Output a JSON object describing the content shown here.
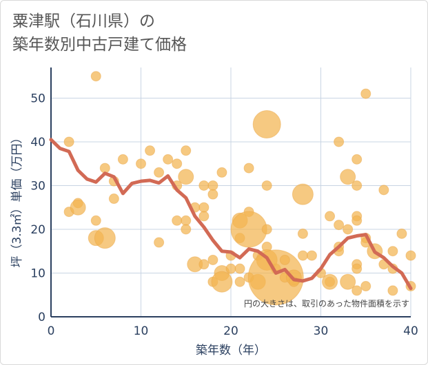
{
  "title_line1": "粟津駅（石川県）の",
  "title_line2": "築年数別中古戸建て価格",
  "colors": {
    "bubble_fill": "#f2b450",
    "bubble_stroke": "#e9a84a",
    "line": "#d26a55",
    "grid": "#c8d4e3",
    "axis": "#2a3f5f"
  },
  "chart_data": {
    "type": "scatter",
    "title": "粟津駅（石川県）の築年数別中古戸建て価格",
    "xlabel": "築年数（年）",
    "ylabel": "坪（3.3㎡）単価（万円）",
    "xlim": [
      0,
      40
    ],
    "ylim": [
      0,
      57
    ],
    "xticks": [
      0,
      10,
      20,
      30,
      40
    ],
    "yticks": [
      0,
      10,
      20,
      30,
      40,
      50
    ],
    "note": "円の大きさは、取引のあった物件面積を示す",
    "points": [
      {
        "x": 2,
        "y": 40,
        "s": 1
      },
      {
        "x": 2,
        "y": 24,
        "s": 1
      },
      {
        "x": 3,
        "y": 26,
        "s": 1
      },
      {
        "x": 3,
        "y": 25,
        "s": 2
      },
      {
        "x": 5,
        "y": 55,
        "s": 1
      },
      {
        "x": 5,
        "y": 22,
        "s": 1
      },
      {
        "x": 5,
        "y": 18,
        "s": 2
      },
      {
        "x": 6,
        "y": 34,
        "s": 1
      },
      {
        "x": 6,
        "y": 18,
        "s": 3
      },
      {
        "x": 7,
        "y": 31,
        "s": 1
      },
      {
        "x": 7,
        "y": 27,
        "s": 1
      },
      {
        "x": 8,
        "y": 36,
        "s": 1
      },
      {
        "x": 10,
        "y": 35,
        "s": 1
      },
      {
        "x": 11,
        "y": 38,
        "s": 1
      },
      {
        "x": 12,
        "y": 33,
        "s": 1
      },
      {
        "x": 12,
        "y": 17,
        "s": 1
      },
      {
        "x": 13,
        "y": 36,
        "s": 1
      },
      {
        "x": 14,
        "y": 35,
        "s": 1
      },
      {
        "x": 14,
        "y": 30,
        "s": 1
      },
      {
        "x": 14,
        "y": 22,
        "s": 1
      },
      {
        "x": 15,
        "y": 38,
        "s": 1
      },
      {
        "x": 15,
        "y": 32,
        "s": 2
      },
      {
        "x": 15,
        "y": 22,
        "s": 1
      },
      {
        "x": 15,
        "y": 20,
        "s": 1
      },
      {
        "x": 16,
        "y": 25,
        "s": 1
      },
      {
        "x": 16,
        "y": 12,
        "s": 2
      },
      {
        "x": 17,
        "y": 30,
        "s": 1
      },
      {
        "x": 17,
        "y": 25,
        "s": 1
      },
      {
        "x": 17,
        "y": 23,
        "s": 1
      },
      {
        "x": 17,
        "y": 12,
        "s": 1
      },
      {
        "x": 18,
        "y": 30,
        "s": 1
      },
      {
        "x": 18,
        "y": 28,
        "s": 1
      },
      {
        "x": 18,
        "y": 13,
        "s": 1
      },
      {
        "x": 18,
        "y": 8,
        "s": 1
      },
      {
        "x": 19,
        "y": 33,
        "s": 1
      },
      {
        "x": 19,
        "y": 10,
        "s": 2
      },
      {
        "x": 19,
        "y": 8,
        "s": 3
      },
      {
        "x": 20,
        "y": 14,
        "s": 1
      },
      {
        "x": 20,
        "y": 11,
        "s": 1
      },
      {
        "x": 21,
        "y": 22,
        "s": 2
      },
      {
        "x": 21,
        "y": 18,
        "s": 1
      },
      {
        "x": 21,
        "y": 11,
        "s": 1
      },
      {
        "x": 21,
        "y": 8,
        "s": 1
      },
      {
        "x": 22,
        "y": 34,
        "s": 1
      },
      {
        "x": 22,
        "y": 24,
        "s": 1
      },
      {
        "x": 22,
        "y": 20,
        "s": 5
      },
      {
        "x": 22,
        "y": 9,
        "s": 1
      },
      {
        "x": 23,
        "y": 14,
        "s": 1
      },
      {
        "x": 23,
        "y": 8,
        "s": 2
      },
      {
        "x": 24,
        "y": 44,
        "s": 4
      },
      {
        "x": 24,
        "y": 30,
        "s": 1
      },
      {
        "x": 24,
        "y": 20,
        "s": 1
      },
      {
        "x": 24,
        "y": 16,
        "s": 1
      },
      {
        "x": 24,
        "y": 13,
        "s": 3
      },
      {
        "x": 25,
        "y": 11,
        "s": 1
      },
      {
        "x": 25,
        "y": 9,
        "s": 6
      },
      {
        "x": 26,
        "y": 13,
        "s": 1
      },
      {
        "x": 26,
        "y": 9,
        "s": 1
      },
      {
        "x": 27,
        "y": 9,
        "s": 2
      },
      {
        "x": 27,
        "y": 8,
        "s": 1
      },
      {
        "x": 28,
        "y": 28,
        "s": 3
      },
      {
        "x": 28,
        "y": 19,
        "s": 1
      },
      {
        "x": 28,
        "y": 14,
        "s": 1
      },
      {
        "x": 29,
        "y": 14,
        "s": 1
      },
      {
        "x": 30,
        "y": 10,
        "s": 1
      },
      {
        "x": 31,
        "y": 23,
        "s": 1
      },
      {
        "x": 31,
        "y": 8,
        "s": 1
      },
      {
        "x": 31,
        "y": 8,
        "s": 2
      },
      {
        "x": 32,
        "y": 40,
        "s": 1
      },
      {
        "x": 32,
        "y": 21,
        "s": 1
      },
      {
        "x": 32,
        "y": 16,
        "s": 1
      },
      {
        "x": 32,
        "y": 15,
        "s": 1
      },
      {
        "x": 33,
        "y": 32,
        "s": 2
      },
      {
        "x": 33,
        "y": 20,
        "s": 1
      },
      {
        "x": 33,
        "y": 8,
        "s": 2
      },
      {
        "x": 34,
        "y": 36,
        "s": 1
      },
      {
        "x": 34,
        "y": 30,
        "s": 1
      },
      {
        "x": 34,
        "y": 23,
        "s": 1
      },
      {
        "x": 34,
        "y": 22,
        "s": 1
      },
      {
        "x": 34,
        "y": 12,
        "s": 1
      },
      {
        "x": 34,
        "y": 11,
        "s": 1
      },
      {
        "x": 34,
        "y": 6,
        "s": 1
      },
      {
        "x": 35,
        "y": 51,
        "s": 1
      },
      {
        "x": 35,
        "y": 18,
        "s": 1
      },
      {
        "x": 35,
        "y": 17,
        "s": 1
      },
      {
        "x": 35,
        "y": 7,
        "s": 1
      },
      {
        "x": 36,
        "y": 15,
        "s": 2
      },
      {
        "x": 37,
        "y": 29,
        "s": 1
      },
      {
        "x": 37,
        "y": 12,
        "s": 1
      },
      {
        "x": 38,
        "y": 15,
        "s": 1
      },
      {
        "x": 38,
        "y": 11,
        "s": 1
      },
      {
        "x": 38,
        "y": 6,
        "s": 1
      },
      {
        "x": 39,
        "y": 19,
        "s": 1
      },
      {
        "x": 40,
        "y": 14,
        "s": 1
      },
      {
        "x": 40,
        "y": 7,
        "s": 1
      }
    ],
    "trend": [
      {
        "x": 0,
        "y": 40.5
      },
      {
        "x": 1,
        "y": 38.5
      },
      {
        "x": 2,
        "y": 37.8
      },
      {
        "x": 3,
        "y": 33.5
      },
      {
        "x": 4,
        "y": 31.5
      },
      {
        "x": 5,
        "y": 30.8
      },
      {
        "x": 6,
        "y": 32.8
      },
      {
        "x": 7,
        "y": 32.0
      },
      {
        "x": 8,
        "y": 28.2
      },
      {
        "x": 9,
        "y": 30.5
      },
      {
        "x": 10,
        "y": 31.0
      },
      {
        "x": 11,
        "y": 31.2
      },
      {
        "x": 12,
        "y": 30.6
      },
      {
        "x": 13,
        "y": 32.2
      },
      {
        "x": 14,
        "y": 29.0
      },
      {
        "x": 15,
        "y": 27.2
      },
      {
        "x": 16,
        "y": 23.0
      },
      {
        "x": 17,
        "y": 20.5
      },
      {
        "x": 18,
        "y": 17.5
      },
      {
        "x": 19,
        "y": 15.0
      },
      {
        "x": 20,
        "y": 14.8
      },
      {
        "x": 21,
        "y": 13.5
      },
      {
        "x": 22,
        "y": 15.5
      },
      {
        "x": 23,
        "y": 15.0
      },
      {
        "x": 24,
        "y": 13.5
      },
      {
        "x": 25,
        "y": 10.0
      },
      {
        "x": 26,
        "y": 10.8
      },
      {
        "x": 27,
        "y": 8.5
      },
      {
        "x": 28,
        "y": 8.2
      },
      {
        "x": 29,
        "y": 8.8
      },
      {
        "x": 30,
        "y": 11.0
      },
      {
        "x": 31,
        "y": 14.2
      },
      {
        "x": 32,
        "y": 16.0
      },
      {
        "x": 33,
        "y": 18.0
      },
      {
        "x": 34,
        "y": 18.5
      },
      {
        "x": 35,
        "y": 18.8
      },
      {
        "x": 36,
        "y": 14.8
      },
      {
        "x": 37,
        "y": 13.5
      },
      {
        "x": 38,
        "y": 11.5
      },
      {
        "x": 39,
        "y": 10.0
      },
      {
        "x": 40,
        "y": 6.5
      }
    ]
  }
}
